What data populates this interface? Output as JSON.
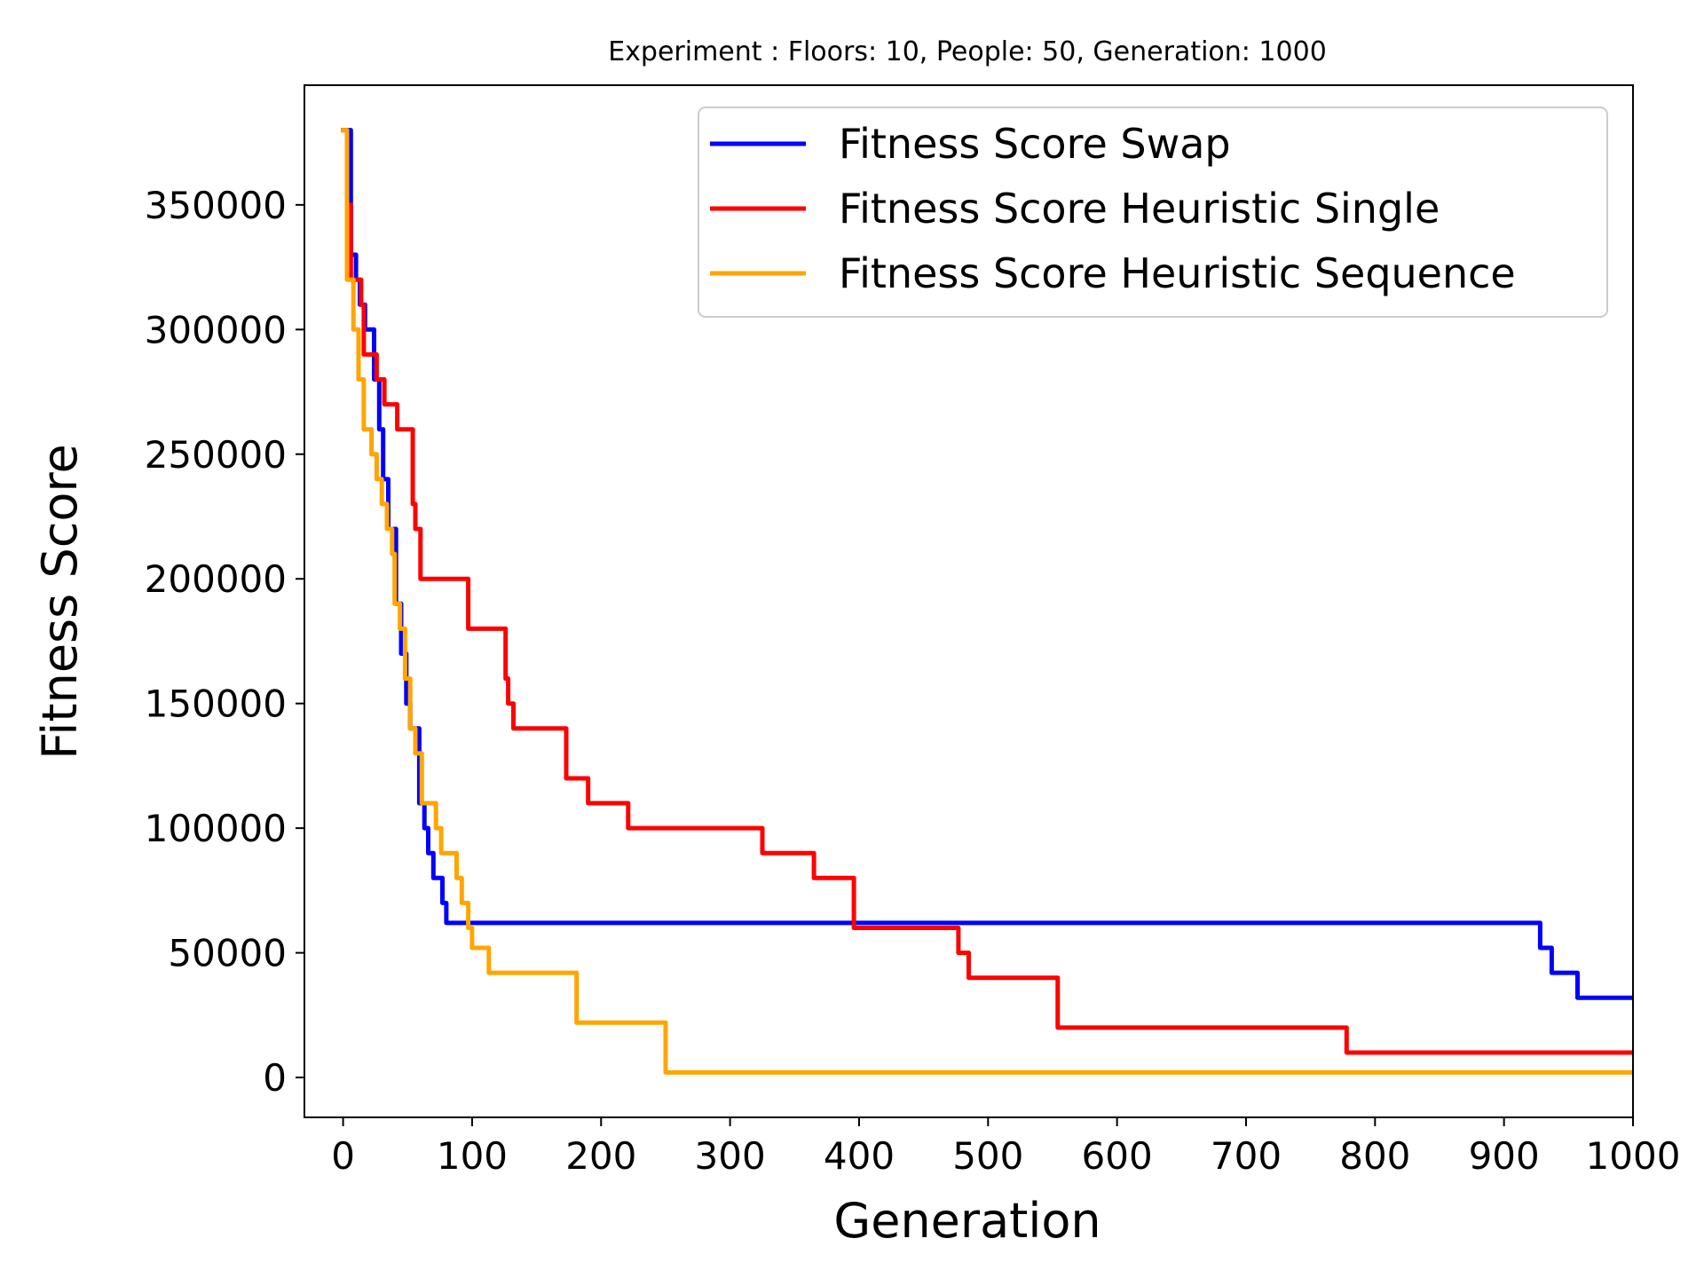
{
  "chart_data": {
    "type": "line",
    "title": "Experiment : Floors: 10, People: 50, Generation: 1000",
    "xlabel": "Generation",
    "ylabel": "Fitness Score",
    "xlim": [
      -30,
      1000
    ],
    "ylim": [
      -16000,
      398000
    ],
    "x_ticks": [
      0,
      100,
      200,
      300,
      400,
      500,
      600,
      700,
      800,
      900,
      1000
    ],
    "y_ticks": [
      0,
      50000,
      100000,
      150000,
      200000,
      250000,
      300000,
      350000
    ],
    "grid": false,
    "legend_position": "top-right",
    "series": [
      {
        "name": "Fitness Score Swap",
        "color": "#0000ff",
        "step": true,
        "points": [
          [
            0,
            380000
          ],
          [
            3,
            380000
          ],
          [
            6,
            330000
          ],
          [
            10,
            320000
          ],
          [
            13,
            310000
          ],
          [
            17,
            300000
          ],
          [
            21,
            300000
          ],
          [
            24,
            280000
          ],
          [
            28,
            260000
          ],
          [
            31,
            240000
          ],
          [
            35,
            220000
          ],
          [
            38,
            220000
          ],
          [
            41,
            190000
          ],
          [
            45,
            170000
          ],
          [
            49,
            150000
          ],
          [
            52,
            140000
          ],
          [
            56,
            140000
          ],
          [
            59,
            110000
          ],
          [
            63,
            100000
          ],
          [
            66,
            90000
          ],
          [
            70,
            80000
          ],
          [
            73,
            80000
          ],
          [
            77,
            70000
          ],
          [
            80,
            62000
          ],
          [
            1000,
            62000
          ]
        ],
        "tail": [
          [
            925,
            62000
          ],
          [
            928,
            52000
          ],
          [
            935,
            52000
          ],
          [
            937,
            42000
          ],
          [
            955,
            42000
          ],
          [
            957,
            32000
          ],
          [
            1000,
            32000
          ]
        ]
      },
      {
        "name": "Fitness Score Heuristic Single",
        "color": "#ff0000",
        "step": true,
        "points": [
          [
            0,
            380000
          ],
          [
            3,
            350000
          ],
          [
            6,
            320000
          ],
          [
            14,
            310000
          ],
          [
            16,
            290000
          ],
          [
            24,
            290000
          ],
          [
            26,
            280000
          ],
          [
            30,
            280000
          ],
          [
            32,
            270000
          ],
          [
            40,
            270000
          ],
          [
            42,
            260000
          ],
          [
            52,
            260000
          ],
          [
            54,
            230000
          ],
          [
            56,
            220000
          ],
          [
            60,
            200000
          ],
          [
            94,
            200000
          ],
          [
            97,
            180000
          ],
          [
            124,
            180000
          ],
          [
            126,
            160000
          ],
          [
            128,
            150000
          ],
          [
            132,
            140000
          ],
          [
            170,
            140000
          ],
          [
            173,
            120000
          ],
          [
            188,
            120000
          ],
          [
            190,
            110000
          ],
          [
            218,
            110000
          ],
          [
            221,
            100000
          ],
          [
            322,
            100000
          ],
          [
            325,
            90000
          ],
          [
            362,
            90000
          ],
          [
            365,
            80000
          ],
          [
            393,
            80000
          ],
          [
            396,
            60000
          ],
          [
            474,
            60000
          ],
          [
            477,
            50000
          ],
          [
            482,
            50000
          ],
          [
            485,
            40000
          ],
          [
            552,
            40000
          ],
          [
            554,
            20000
          ],
          [
            776,
            20000
          ],
          [
            778,
            10000
          ],
          [
            1000,
            10000
          ]
        ]
      },
      {
        "name": "Fitness Score Heuristic Sequence",
        "color": "#ffa500",
        "step": true,
        "points": [
          [
            0,
            380000
          ],
          [
            3,
            320000
          ],
          [
            8,
            300000
          ],
          [
            12,
            280000
          ],
          [
            16,
            260000
          ],
          [
            22,
            250000
          ],
          [
            26,
            240000
          ],
          [
            30,
            230000
          ],
          [
            34,
            220000
          ],
          [
            38,
            210000
          ],
          [
            40,
            190000
          ],
          [
            44,
            180000
          ],
          [
            48,
            160000
          ],
          [
            52,
            140000
          ],
          [
            56,
            130000
          ],
          [
            61,
            110000
          ],
          [
            68,
            110000
          ],
          [
            72,
            100000
          ],
          [
            76,
            90000
          ],
          [
            84,
            90000
          ],
          [
            88,
            80000
          ],
          [
            92,
            70000
          ],
          [
            97,
            60000
          ],
          [
            100,
            52000
          ],
          [
            110,
            52000
          ],
          [
            113,
            42000
          ],
          [
            178,
            42000
          ],
          [
            181,
            22000
          ],
          [
            248,
            22000
          ],
          [
            250,
            2000
          ],
          [
            1000,
            2000
          ]
        ]
      }
    ]
  }
}
